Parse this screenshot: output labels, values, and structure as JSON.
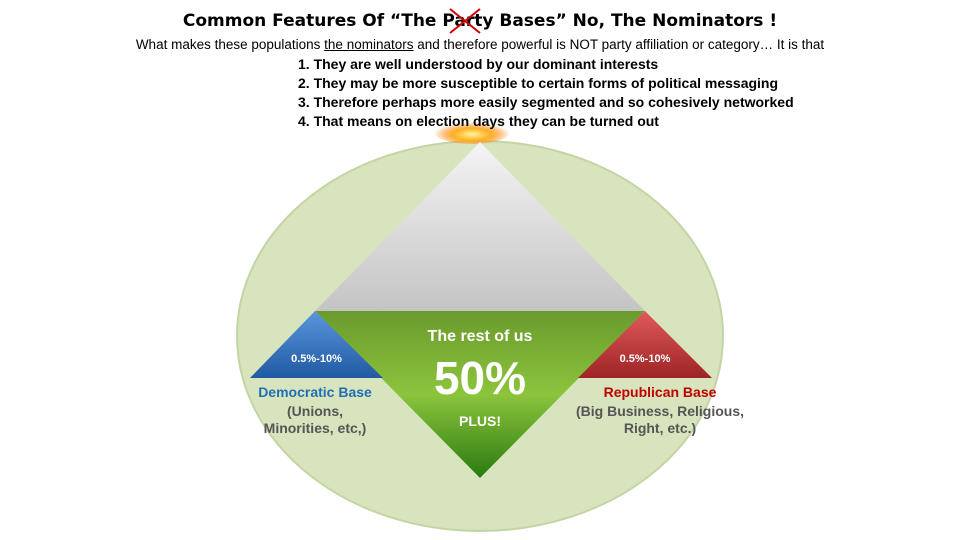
{
  "title": {
    "before": "Common Features Of  “The ",
    "struck": "Party",
    "after": " Bases” No, The Nominators !"
  },
  "subtitle": {
    "before": "What makes these populations ",
    "underlined": "the nominators",
    "after": " and therefore powerful is NOT party affiliation or category… It is that"
  },
  "points": [
    "1. They are well understood by our dominant interests",
    "2. They may be more susceptible to certain forms of political messaging",
    "3. Therefore perhaps more easily segmented and so cohesively networked",
    "4. That means on election days they can be turned out"
  ],
  "diagram": {
    "center": {
      "line1": "The rest of us",
      "big": "50%",
      "line2": "PLUS!"
    },
    "left": {
      "percent": "0.5%-10%",
      "name": "Democratic Base",
      "detail1": "(Unions,",
      "detail2": "Minorities, etc,)"
    },
    "right": {
      "percent": "0.5%-10%",
      "name": "Republican Base",
      "detail1": "(Big Business, Religious,",
      "detail2": "Right, etc.)"
    }
  },
  "colors": {
    "ellipse": "#d7e4bd",
    "green": "#5a9e2a",
    "blue": "#2e6cb8",
    "red": "#c0393b",
    "dem_text": "#1f6fb5",
    "rep_text": "#c00000",
    "cross": "#d40000"
  }
}
